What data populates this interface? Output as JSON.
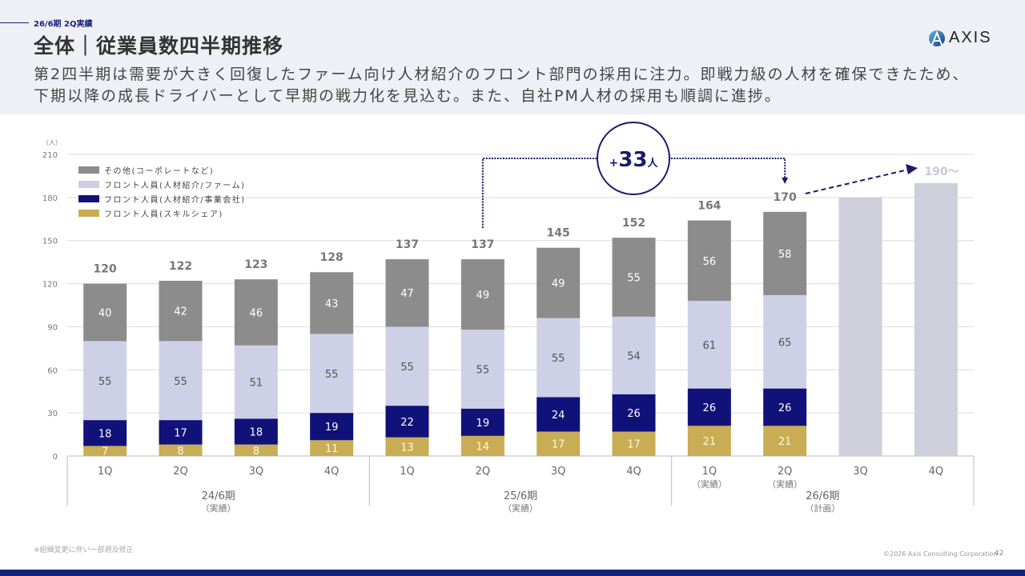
{
  "header": {
    "kicker": "26/6期 2Q実績",
    "title": "全体｜従業員数四半期推移",
    "subtitle_lines": [
      "第2四半期は需要が大きく回復したファーム向け人材紹介のフロント部門の採用に注力。即戦力級の人材を確保できたため、",
      "下期以降の成長ドライバーとして早期の戦力化を見込む。また、自社PM人材の採用も順調に進捗。"
    ],
    "logo_text": "AXIS"
  },
  "footer": {
    "note": "※組織変更に伴い一部遡及修正",
    "copyright": "©2026 Axis Consulting Corporation",
    "page": "42"
  },
  "colors": {
    "other": "#8c8c8c",
    "front_firm": "#cdd0e6",
    "front_business": "#11117a",
    "front_skill": "#c9ad54",
    "plan": "#cfcfdb",
    "accent": "#1a1a6e"
  },
  "chart_data": {
    "type": "bar",
    "stacked": true,
    "unit_label": "（人）",
    "ylim": [
      0,
      210
    ],
    "yticks": [
      0,
      30,
      60,
      90,
      120,
      150,
      180,
      210
    ],
    "grid": true,
    "legend_position": "top-left",
    "categories": [
      "1Q",
      "2Q",
      "3Q",
      "4Q",
      "1Q",
      "2Q",
      "3Q",
      "4Q",
      "1Q",
      "2Q",
      "3Q",
      "4Q"
    ],
    "category_sublabels": [
      "",
      "",
      "",
      "",
      "",
      "",
      "",
      "",
      "（実績）",
      "（実績）",
      "",
      ""
    ],
    "groups": [
      {
        "label": "24/6期",
        "sublabel": "（実績）",
        "span": [
          0,
          3
        ]
      },
      {
        "label": "25/6期",
        "sublabel": "（実績）",
        "span": [
          4,
          7
        ]
      },
      {
        "label": "26/6期",
        "sublabel": "（計画）",
        "span": [
          8,
          11
        ]
      }
    ],
    "series": [
      {
        "name": "フロント人員(スキルシェア)",
        "key": "front_skill",
        "values": [
          7,
          8,
          8,
          11,
          13,
          14,
          17,
          17,
          21,
          21,
          null,
          null
        ]
      },
      {
        "name": "フロント人員(人材紹介/事業会社)",
        "key": "front_business",
        "values": [
          18,
          17,
          18,
          19,
          22,
          19,
          24,
          26,
          26,
          26,
          null,
          null
        ]
      },
      {
        "name": "フロント人員(人材紹介/ファーム)",
        "key": "front_firm",
        "values": [
          55,
          55,
          51,
          55,
          55,
          55,
          55,
          54,
          61,
          65,
          null,
          null
        ]
      },
      {
        "name": "その他(コーポレートなど)",
        "key": "other",
        "values": [
          40,
          42,
          46,
          43,
          47,
          49,
          49,
          55,
          56,
          58,
          null,
          null
        ]
      }
    ],
    "legend_order": [
      "other",
      "front_firm",
      "front_business",
      "front_skill"
    ],
    "totals": [
      120,
      122,
      123,
      128,
      137,
      137,
      145,
      152,
      164,
      170,
      null,
      null
    ],
    "plan_values": [
      null,
      null,
      null,
      null,
      null,
      null,
      null,
      null,
      null,
      null,
      180,
      190
    ],
    "plan_label": "190～",
    "annotation": {
      "text_prefix": "+",
      "text_value": "33",
      "text_suffix": "人",
      "from_index": 5,
      "to_index": 9
    }
  }
}
